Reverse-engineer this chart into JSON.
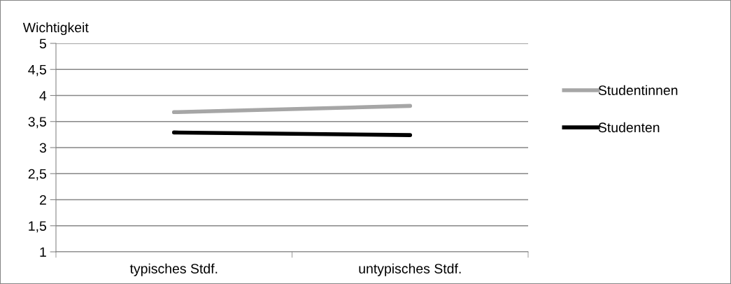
{
  "chart_data": {
    "type": "line",
    "ylabel": "Wichtigkeit",
    "categories": [
      "typisches Stdf.",
      "untypisches Stdf."
    ],
    "series": [
      {
        "name": "Studentinnen",
        "color": "#a6a6a6",
        "values": [
          3.68,
          3.8
        ]
      },
      {
        "name": "Studenten",
        "color": "#000000",
        "values": [
          3.29,
          3.24
        ]
      }
    ],
    "ylim": [
      1,
      5
    ],
    "yticks": [
      1,
      {
        "value": 1.5,
        "label": "1,5"
      },
      2,
      {
        "value": 2.5,
        "label": "2,5"
      },
      3,
      {
        "value": 3.5,
        "label": "3,5"
      },
      4,
      {
        "value": 4.5,
        "label": "4,5"
      },
      5
    ],
    "grid": "y",
    "legend": "right",
    "marker": "none",
    "line_style": "solid"
  }
}
